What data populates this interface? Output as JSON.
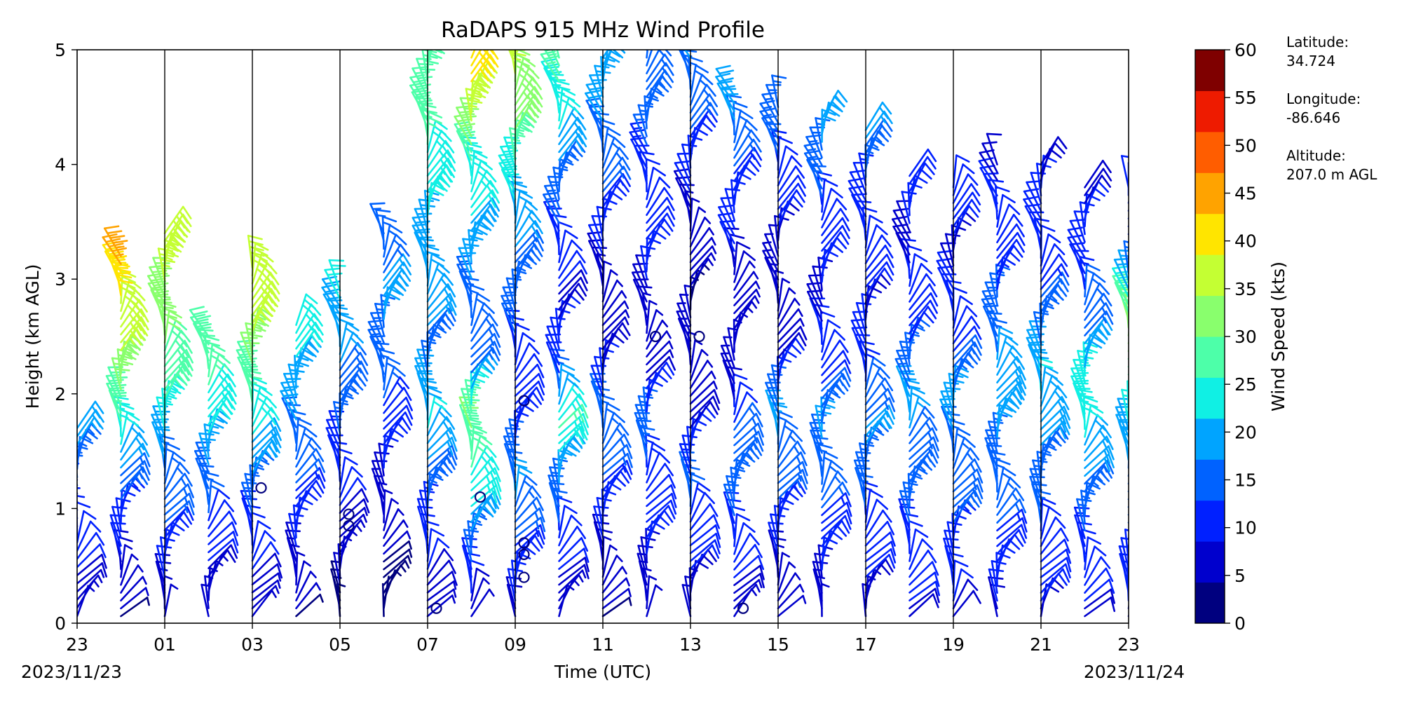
{
  "chart_data": {
    "type": "wind-barb profile",
    "title": "RaDAPS 915 MHz Wind Profile",
    "xlabel": "Time (UTC)",
    "ylabel": "Height (km AGL)",
    "x_ticks": [
      "23",
      "01",
      "03",
      "05",
      "07",
      "09",
      "11",
      "13",
      "15",
      "17",
      "19",
      "21",
      "23"
    ],
    "y_ticks": [
      "0",
      "1",
      "2",
      "3",
      "4",
      "5"
    ],
    "ylim": [
      0,
      5
    ],
    "start_date": "2023/11/23",
    "end_date": "2023/11/24",
    "colorbar": {
      "label": "Wind Speed (kts)",
      "ticks": [
        "0",
        "5",
        "10",
        "15",
        "20",
        "25",
        "30",
        "35",
        "40",
        "45",
        "50",
        "55",
        "60"
      ],
      "range": [
        0,
        60
      ],
      "colors": [
        "#00007f",
        "#0000cd",
        "#0020ff",
        "#0062ff",
        "#00a4ff",
        "#10f0e4",
        "#4dffa9",
        "#89ff6d",
        "#c4ff33",
        "#ffe500",
        "#ffa300",
        "#ff5d00",
        "#ee1b00",
        "#7f0000"
      ]
    },
    "station": {
      "latitude_label": "Latitude:",
      "latitude": "34.724",
      "longitude_label": "Longitude:",
      "longitude": "-86.646",
      "altitude_label": "Altitude:",
      "altitude": "207.0 m AGL"
    },
    "columns": [
      {
        "time_hours": 0.0,
        "top_km": 1.7,
        "speeds_kts": [
          6,
          8,
          10,
          12,
          14,
          20
        ]
      },
      {
        "time_hours": 1.0,
        "top_km": 3.2,
        "speeds_kts": [
          4,
          8,
          12,
          18,
          28,
          34,
          38,
          44
        ]
      },
      {
        "time_hours": 2.0,
        "top_km": 3.4,
        "speeds_kts": [
          6,
          10,
          14,
          18,
          26,
          30,
          34,
          36
        ]
      },
      {
        "time_hours": 3.0,
        "top_km": 2.5,
        "speeds_kts": [
          5,
          8,
          12,
          16,
          22,
          26,
          28
        ]
      },
      {
        "time_hours": 4.0,
        "top_km": 3.1,
        "speeds_kts": [
          6,
          9,
          13,
          18,
          24,
          30,
          36,
          38
        ]
      },
      {
        "time_hours": 5.0,
        "top_km": 2.6,
        "speeds_kts": [
          4,
          8,
          12,
          16,
          20,
          24
        ]
      },
      {
        "time_hours": 6.0,
        "top_km": 2.9,
        "speeds_kts": [
          3,
          6,
          10,
          14,
          18,
          22
        ]
      },
      {
        "time_hours": 7.0,
        "top_km": 3.4,
        "speeds_kts": [
          2,
          5,
          9,
          14,
          18,
          16
        ]
      },
      {
        "time_hours": 8.0,
        "top_km": 5.0,
        "speeds_kts": [
          6,
          10,
          14,
          22,
          16,
          18,
          20,
          24,
          28,
          30
        ]
      },
      {
        "time_hours": 9.0,
        "top_km": 5.0,
        "speeds_kts": [
          6,
          14,
          24,
          30,
          14,
          16,
          20,
          24,
          36,
          42
        ]
      },
      {
        "time_hours": 10.0,
        "top_km": 5.0,
        "speeds_kts": [
          8,
          12,
          18,
          10,
          12,
          14,
          18,
          24,
          32,
          36
        ]
      },
      {
        "time_hours": 11.0,
        "top_km": 5.0,
        "speeds_kts": [
          5,
          10,
          16,
          26,
          10,
          8,
          12,
          16,
          24,
          28
        ]
      },
      {
        "time_hours": 12.0,
        "top_km": 5.0,
        "speeds_kts": [
          4,
          8,
          12,
          16,
          8,
          6,
          10,
          14,
          18,
          20
        ]
      },
      {
        "time_hours": 13.0,
        "top_km": 5.0,
        "speeds_kts": [
          5,
          9,
          12,
          14,
          6,
          8,
          10,
          12,
          14,
          16
        ]
      },
      {
        "time_hours": 14.0,
        "top_km": 5.0,
        "speeds_kts": [
          6,
          10,
          14,
          8,
          6,
          4,
          6,
          10,
          14,
          18
        ]
      },
      {
        "time_hours": 15.0,
        "top_km": 4.6,
        "speeds_kts": [
          6,
          10,
          14,
          16,
          6,
          6,
          8,
          10,
          14,
          20
        ]
      },
      {
        "time_hours": 16.0,
        "top_km": 4.5,
        "speeds_kts": [
          5,
          9,
          14,
          18,
          8,
          6,
          8,
          12,
          16
        ]
      },
      {
        "time_hours": 17.0,
        "top_km": 4.4,
        "speeds_kts": [
          6,
          10,
          14,
          18,
          10,
          8,
          10,
          14,
          20
        ]
      },
      {
        "time_hours": 18.0,
        "top_km": 4.3,
        "speeds_kts": [
          6,
          10,
          14,
          18,
          12,
          8,
          10,
          12,
          18
        ]
      },
      {
        "time_hours": 19.0,
        "top_km": 3.9,
        "speeds_kts": [
          8,
          12,
          16,
          18,
          10,
          8,
          10
        ]
      },
      {
        "time_hours": 20.0,
        "top_km": 3.8,
        "speeds_kts": [
          8,
          12,
          16,
          18,
          10,
          8,
          10
        ]
      },
      {
        "time_hours": 21.0,
        "top_km": 4.0,
        "speeds_kts": [
          8,
          12,
          16,
          20,
          14,
          10,
          8
        ]
      },
      {
        "time_hours": 22.0,
        "top_km": 4.0,
        "speeds_kts": [
          8,
          12,
          16,
          22,
          14,
          10,
          8
        ]
      },
      {
        "time_hours": 23.0,
        "top_km": 3.8,
        "speeds_kts": [
          8,
          12,
          18,
          26,
          16,
          10,
          8
        ]
      },
      {
        "time_hours": 24.0,
        "top_km": 3.8,
        "speeds_kts": [
          8,
          12,
          16,
          24,
          34,
          12,
          10
        ]
      }
    ],
    "calm_markers": [
      {
        "time_hours": 4.2,
        "height_km": 1.18
      },
      {
        "time_hours": 6.2,
        "height_km": 0.95
      },
      {
        "time_hours": 6.2,
        "height_km": 0.85
      },
      {
        "time_hours": 8.2,
        "height_km": 0.13
      },
      {
        "time_hours": 9.2,
        "height_km": 1.1
      },
      {
        "time_hours": 10.2,
        "height_km": 1.94
      },
      {
        "time_hours": 10.2,
        "height_km": 0.7
      },
      {
        "time_hours": 10.2,
        "height_km": 0.6
      },
      {
        "time_hours": 10.2,
        "height_km": 0.4
      },
      {
        "time_hours": 13.2,
        "height_km": 2.5
      },
      {
        "time_hours": 14.2,
        "height_km": 2.5
      },
      {
        "time_hours": 15.2,
        "height_km": 0.13
      }
    ]
  }
}
